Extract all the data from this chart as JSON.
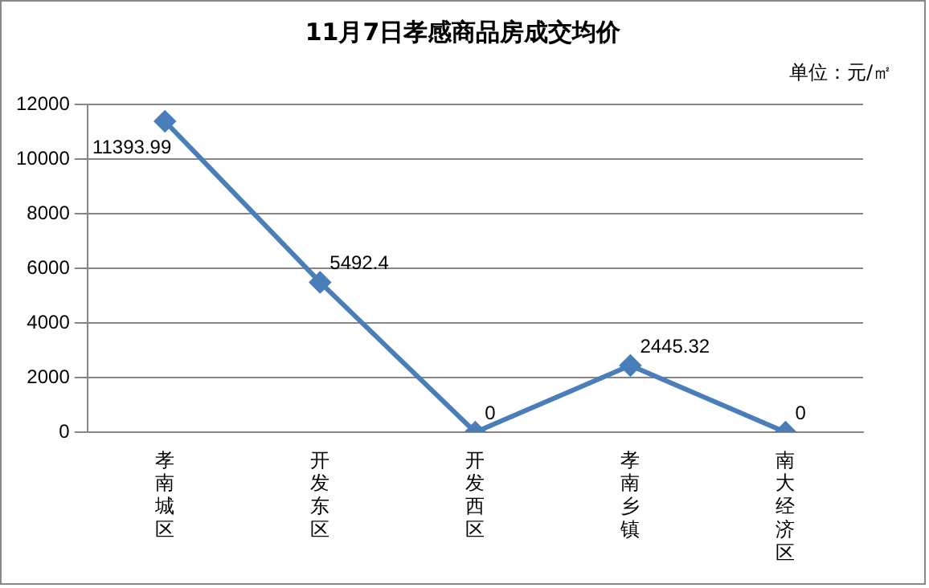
{
  "chart_data": {
    "type": "line",
    "title": "11月7日孝感商品房成交均价",
    "annotations": [
      "单位：元/㎡"
    ],
    "categories": [
      "孝南城区",
      "开发东区",
      "开发西区",
      "孝南乡镇",
      "南大经济区"
    ],
    "series": [
      {
        "color": "#4a7ebb",
        "values": [
          11393.99,
          5492.4,
          0,
          2445.32,
          0
        ]
      }
    ],
    "ylim": [
      0,
      12000
    ],
    "yticks": [
      0,
      2000,
      4000,
      6000,
      8000,
      10000,
      12000
    ],
    "grid": "y",
    "marker": "diamond",
    "line_style": "solid",
    "data_labels": true,
    "legend": false
  }
}
